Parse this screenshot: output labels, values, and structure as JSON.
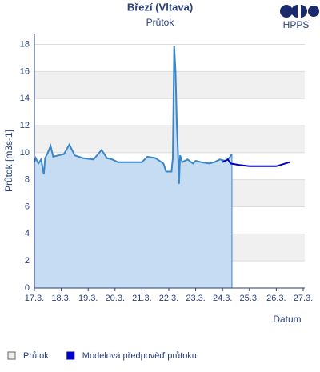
{
  "chart_data": {
    "type": "line",
    "title": "Březí (Vltava)",
    "subtitle": "Průtok",
    "logo": "HPPS",
    "y_label": "Průtok [m3s-1]",
    "x_label": "Datum",
    "xlim": [
      17,
      27.06
    ],
    "ylim": [
      0,
      18.8
    ],
    "xticks": [
      {
        "value": 17,
        "label": "17.3."
      },
      {
        "value": 18,
        "label": "18.3."
      },
      {
        "value": 19,
        "label": "19.3."
      },
      {
        "value": 20,
        "label": "20.3."
      },
      {
        "value": 21,
        "label": "21.3."
      },
      {
        "value": 22,
        "label": "22.3."
      },
      {
        "value": 23,
        "label": "23.3."
      },
      {
        "value": 24,
        "label": "24.3."
      },
      {
        "value": 25,
        "label": "25.3."
      },
      {
        "value": 26,
        "label": "26.3."
      },
      {
        "value": 27,
        "label": "27.3."
      }
    ],
    "yticks": [
      0,
      2,
      4,
      6,
      8,
      10,
      12,
      14,
      16,
      18
    ],
    "grid": true,
    "series": [
      {
        "name": "Průtok",
        "color": "#3a86c8",
        "fill": "#c6dcf2",
        "x": [
          17.0,
          17.05,
          17.15,
          17.25,
          17.35,
          17.4,
          17.5,
          17.6,
          17.7,
          17.9,
          18.1,
          18.3,
          18.5,
          18.8,
          19.2,
          19.5,
          19.7,
          19.9,
          20.1,
          20.5,
          21.0,
          21.2,
          21.5,
          21.8,
          21.9,
          22.1,
          22.15,
          22.2,
          22.25,
          22.3,
          22.35,
          22.38,
          22.42,
          22.5,
          22.7,
          22.9,
          23.0,
          23.2,
          23.5,
          23.7,
          23.9,
          24.1,
          24.25,
          24.35
        ],
        "values": [
          9.3,
          9.6,
          9.2,
          9.5,
          8.4,
          9.6,
          10.0,
          10.5,
          9.7,
          9.8,
          9.9,
          10.6,
          9.8,
          9.6,
          9.5,
          10.2,
          9.6,
          9.5,
          9.3,
          9.3,
          9.3,
          9.7,
          9.6,
          9.2,
          8.6,
          8.6,
          9.6,
          17.9,
          16.0,
          12.0,
          9.5,
          7.7,
          9.8,
          9.3,
          9.5,
          9.2,
          9.4,
          9.3,
          9.2,
          9.3,
          9.5,
          9.4,
          9.6,
          9.9
        ]
      },
      {
        "name": "Modelová předpověď průtoku",
        "color": "#0000cc",
        "x": [
          24.0,
          24.2,
          24.3,
          24.6,
          25.0,
          26.0,
          26.5
        ],
        "values": [
          9.3,
          9.5,
          9.2,
          9.1,
          9.0,
          9.0,
          9.3
        ]
      }
    ]
  }
}
